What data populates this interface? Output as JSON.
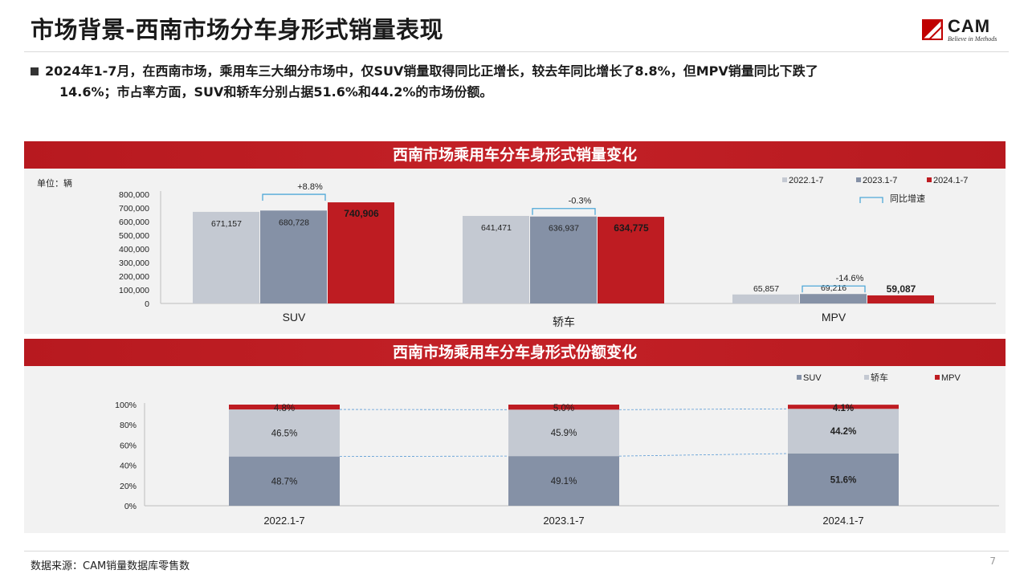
{
  "page": {
    "title": "市场背景-西南市场分车身形式销量表现",
    "summary_line1": "2024年1-7月，在西南市场，乘用车三大细分市场中，仅SUV销量取得同比正增长，较去年同比增长了8.8%，但MPV销量同比下跌了",
    "summary_line2": "14.6%；市占率方面，SUV和轿车分别占据51.6%和44.2%的市场份额。",
    "source": "数据来源：CAM销量数据库零售数",
    "page_number": "7"
  },
  "logo": {
    "text": "CAM",
    "slogan": "Believe in Methods",
    "color": "#c00000"
  },
  "colors": {
    "y2022": "#c4c9d2",
    "y2023": "#8591a6",
    "y2024": "#be1c22",
    "header": "#c22026",
    "bracket": "#4fa8d8"
  },
  "chart_data": [
    {
      "type": "bar",
      "title": "西南市场乘用车分车身形式销量变化",
      "unit_label": "单位：辆",
      "categories": [
        "SUV",
        "轿车",
        "MPV"
      ],
      "series": [
        {
          "name": "2022.1-7",
          "values": [
            671157,
            641471,
            65857
          ],
          "labels": [
            "671,157",
            "641,471",
            "65,857"
          ]
        },
        {
          "name": "2023.1-7",
          "values": [
            680728,
            636937,
            69216
          ],
          "labels": [
            "680,728",
            "636,937",
            "69,216"
          ]
        },
        {
          "name": "2024.1-7",
          "values": [
            740906,
            634775,
            59087
          ],
          "labels": [
            "740,906",
            "634,775",
            "59,087"
          ]
        }
      ],
      "growth": [
        "+8.8%",
        "-0.3%",
        "-14.6%"
      ],
      "growth_legend": "同比增速",
      "ylim": [
        0,
        800000
      ],
      "yticks": [
        "0",
        "100,000",
        "200,000",
        "300,000",
        "400,000",
        "500,000",
        "600,000",
        "700,000",
        "800,000"
      ],
      "legend_position": "top-right"
    },
    {
      "type": "bar",
      "stacked": true,
      "title": "西南市场乘用车分车身形式份额变化",
      "categories": [
        "2022.1-7",
        "2023.1-7",
        "2024.1-7"
      ],
      "series": [
        {
          "name": "SUV",
          "values": [
            48.7,
            49.1,
            51.6
          ],
          "labels": [
            "48.7%",
            "49.1%",
            "51.6%"
          ]
        },
        {
          "name": "轿车",
          "values": [
            46.5,
            45.9,
            44.2
          ],
          "labels": [
            "46.5%",
            "45.9%",
            "44.2%"
          ]
        },
        {
          "name": "MPV",
          "values": [
            4.8,
            5.0,
            4.1
          ],
          "labels": [
            "4.8%",
            "5.0%",
            "4.1%"
          ]
        }
      ],
      "ylim": [
        0,
        100
      ],
      "yticks": [
        "0%",
        "20%",
        "40%",
        "60%",
        "80%",
        "100%"
      ],
      "legend_position": "top-right"
    }
  ]
}
